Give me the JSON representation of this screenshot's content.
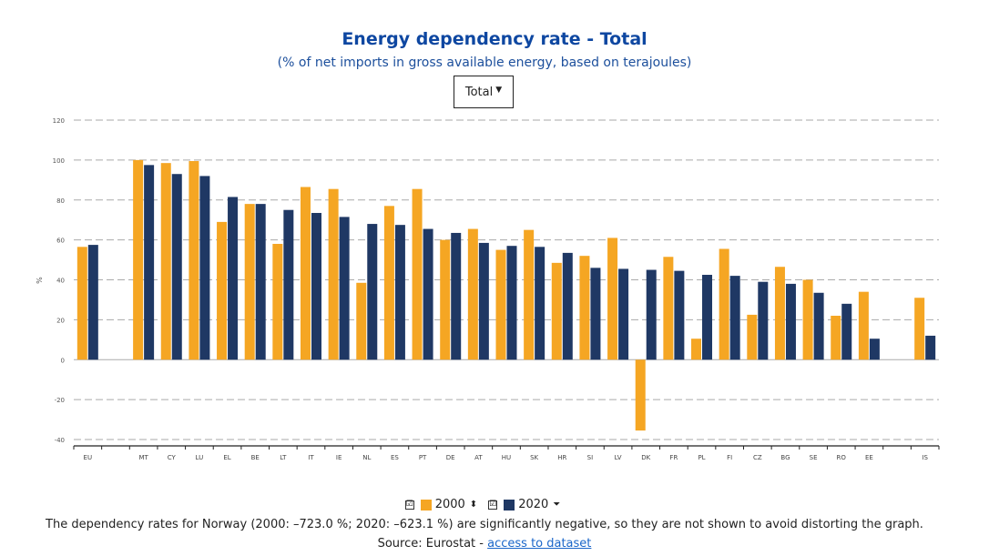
{
  "header": {
    "title": "Energy dependency rate - Total",
    "subtitle": "(% of net imports in gross available energy, based on terajoules)",
    "dropdown_label": "Total"
  },
  "legend": {
    "items": [
      {
        "label": "2000",
        "color": "#f5a623",
        "checked": "☑",
        "sort_icon": "⬍"
      },
      {
        "label": "2020",
        "color": "#1f3864",
        "checked": "☑",
        "sort_icon": "⏷"
      }
    ]
  },
  "footer": {
    "note": "The dependency rates for Norway (2000: –723.0 %; 2020: –623.1 %) are significantly negative, so they are not shown to avoid distorting the graph.",
    "source_prefix": "Source: Eurostat - ",
    "source_link": "access to dataset"
  },
  "chart_data": {
    "type": "bar",
    "ylabel": "%",
    "ylim": [
      -40,
      120
    ],
    "yticks": [
      -40,
      -20,
      0,
      20,
      40,
      60,
      80,
      100,
      120
    ],
    "grid": true,
    "colors": {
      "2000": "#f5a623",
      "2020": "#1f3864"
    },
    "categories": [
      "EU",
      "",
      "MT",
      "CY",
      "LU",
      "EL",
      "BE",
      "LT",
      "IT",
      "IE",
      "NL",
      "ES",
      "PT",
      "DE",
      "AT",
      "HU",
      "SK",
      "HR",
      "SI",
      "LV",
      "DK",
      "FR",
      "PL",
      "FI",
      "CZ",
      "BG",
      "SE",
      "RO",
      "EE",
      "",
      "IS"
    ],
    "series": [
      {
        "name": "2000",
        "values": [
          56.5,
          null,
          100,
          98.5,
          99.5,
          69,
          78,
          58,
          86.5,
          85.5,
          38.5,
          77,
          85.5,
          60,
          65.5,
          55,
          65,
          48.5,
          52,
          61,
          -35.5,
          51.5,
          10.5,
          55.5,
          22.5,
          46.5,
          40,
          22,
          34,
          null,
          31
        ]
      },
      {
        "name": "2020",
        "values": [
          57.5,
          null,
          97.5,
          93,
          92,
          81.5,
          78,
          75,
          73.5,
          71.5,
          68,
          67.5,
          65.5,
          63.5,
          58.5,
          57,
          56.5,
          53.5,
          46,
          45.5,
          45,
          44.5,
          42.5,
          42,
          39,
          38,
          33.5,
          28,
          10.5,
          null,
          12
        ]
      }
    ]
  }
}
